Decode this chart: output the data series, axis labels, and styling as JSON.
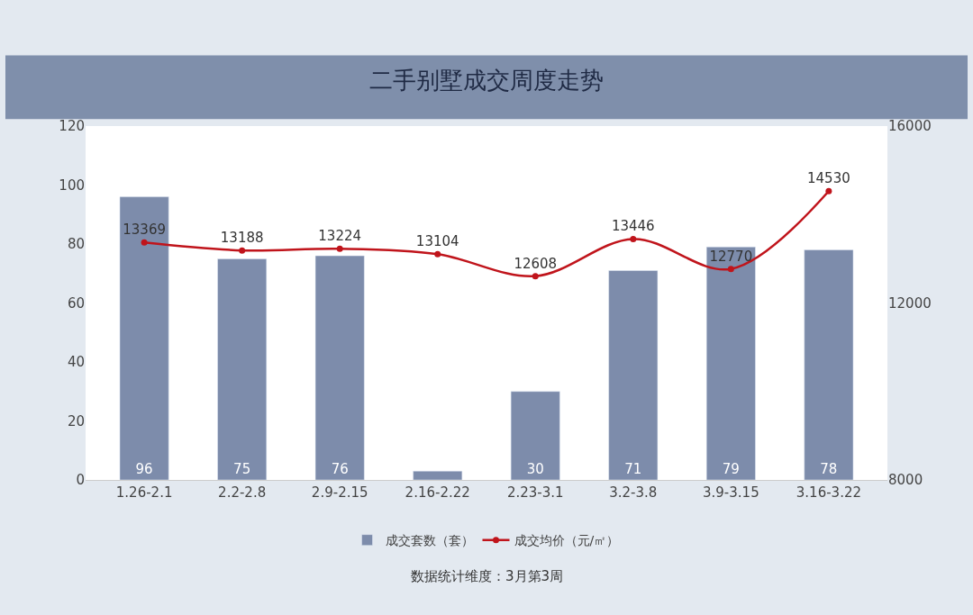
{
  "chart_data": {
    "type": "bar",
    "title": "二手别墅成交周度走势",
    "categories": [
      "1.26-2.1",
      "2.2-2.8",
      "2.9-2.15",
      "2.16-2.22",
      "2.23-3.1",
      "3.2-3.8",
      "3.9-3.15",
      "3.16-3.22"
    ],
    "series": [
      {
        "name": "成交套数（套）",
        "color": "#7d8cab",
        "values": [
          96,
          75,
          76,
          3,
          30,
          71,
          79,
          78
        ],
        "value_labels": [
          "96",
          "75",
          "76",
          null,
          "30",
          "71",
          "79",
          "78"
        ]
      },
      {
        "name": "成交均价（元/㎡）",
        "type": "line",
        "axis": "y2",
        "color": "#c0141b",
        "marker": "circle",
        "values": [
          13369,
          13188,
          13224,
          13104,
          12608,
          13446,
          12770,
          14530
        ],
        "value_labels": [
          "13369",
          "13188",
          "13224",
          "13104",
          "12608",
          "13446",
          "12770",
          "14530"
        ]
      }
    ],
    "ylim": [
      0,
      120
    ],
    "yticks": [
      0,
      20,
      40,
      60,
      80,
      100,
      120
    ],
    "y2lim": [
      8000,
      16000
    ],
    "y2ticks": [
      8000,
      12000,
      16000
    ],
    "legend": "bottom",
    "annotations": [
      "数据统计维度：3月第3周"
    ]
  }
}
